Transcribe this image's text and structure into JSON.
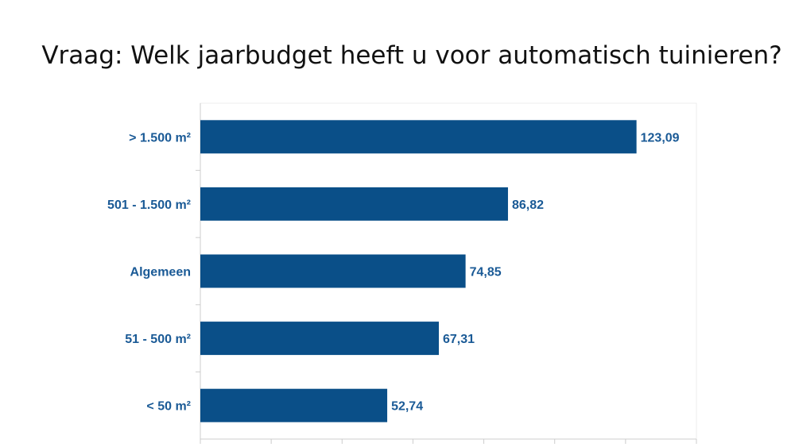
{
  "chart_data": {
    "type": "bar",
    "orientation": "horizontal",
    "title": "Vraag: Welk jaarbudget heeft u voor automatisch tuinieren?",
    "categories": [
      "> 1.500 m²",
      "501 - 1.500 m²",
      "Algemeen",
      "51 - 500 m²",
      "< 50 m²"
    ],
    "values": [
      123.09,
      86.82,
      74.85,
      67.31,
      52.74
    ],
    "data_labels": [
      "123,09",
      "86,82",
      "74,85",
      "67,31",
      "52,74"
    ],
    "xlim": [
      0,
      140
    ],
    "x_tick_step": 20,
    "grid": false,
    "legend": "none",
    "colors": {
      "bar": "#0a4f88",
      "label": "#1a5a96"
    }
  }
}
